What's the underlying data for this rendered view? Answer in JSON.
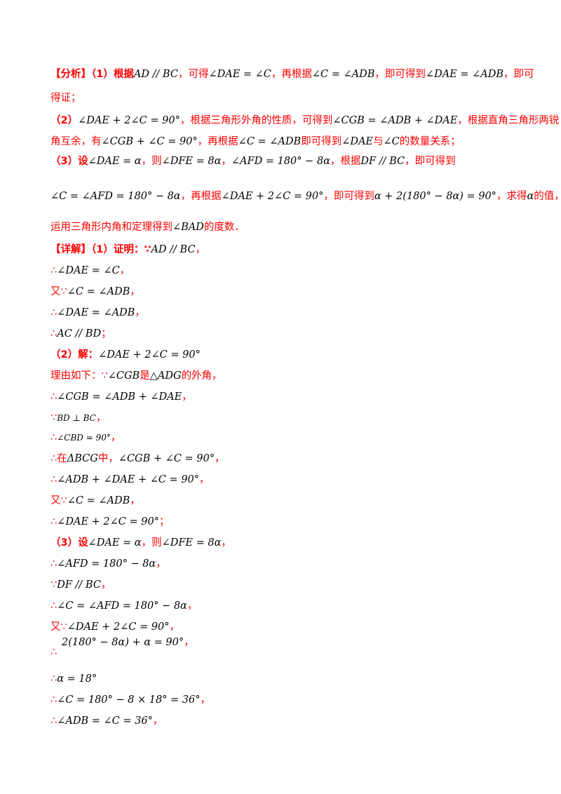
{
  "analysis": {
    "l1a": "【分析】（1）根据",
    "l1m1": "AD // BC",
    "l1b": "，可得",
    "l1m2": "∠DAE = ∠C",
    "l1c": "，再根据",
    "l1m3": "∠C = ∠ADB",
    "l1d": "，即可得到",
    "l1m4": "∠DAE = ∠ADB",
    "l1e": "，即可",
    "l2": "得证；",
    "l3a": "（2）",
    "l3m1": "∠DAE + 2∠C = 90°",
    "l3b": "，根据三角形外角的性质，可得到",
    "l3m2": "∠CGB = ∠ADB + ∠DAE",
    "l3c": "，根据直角三角形两锐",
    "l4a": "角互余，有",
    "l4m1": "∠CGB + ∠C = 90°",
    "l4b": "，再根据",
    "l4m2": "∠C = ∠ADB",
    "l4c": "即可得到",
    "l4m3": "∠DAE",
    "l4d": "与",
    "l4m4": "∠C",
    "l4e": "的数量关系；",
    "l5a": "（3）设",
    "l5m1": "∠DAE = α",
    "l5b": "，则",
    "l5m2": "∠DFE = 8α",
    "l5c": "，",
    "l5m3": "∠AFD = 180° − 8α",
    "l5d": "，根据",
    "l5m4": "DF // BC",
    "l5e": "，即可得到",
    "l6m1": "∠C = ∠AFD = 180° − 8α",
    "l6a": "，再根据",
    "l6m2": "∠DAE + 2∠C = 90°",
    "l6b": "，即可得到",
    "l6m3": "α + 2(180° − 8α) = 90°",
    "l6c": "，求得",
    "l6m4": "α",
    "l6d": "的值，即可",
    "l7a": "运用三角形内角和定理得到",
    "l7m1": "∠BAD",
    "l7b": "的度数．"
  },
  "detail": {
    "d1a": "【详解】（1）证明：∵",
    "d1m": "AD // BC",
    "d1b": "，",
    "d2a": "∴",
    "d2m": "∠DAE = ∠C",
    "d2b": "，",
    "d3a": "又∵",
    "d3m": "∠C = ∠ADB",
    "d3b": "，",
    "d4a": "∴",
    "d4m": "∠DAE = ∠ADB",
    "d4b": "，",
    "d5a": "∴",
    "d5m": "AC // BD",
    "d5b": "；",
    "d6a": "（2）解：",
    "d6m": "∠DAE + 2∠C = 90°",
    "d7a": "理由如下：∵",
    "d7m1": "∠CGB",
    "d7b": "是",
    "d7m2": "△ADG",
    "d7c": "的外角，",
    "d8a": "∴",
    "d8m": "∠CGB = ∠ADB + ∠DAE",
    "d8b": "，",
    "d9a": "∵",
    "d9m": "BD ⊥ BC",
    "d9b": "，",
    "d10a": "∴",
    "d10m": "∠CBD = 90°",
    "d10b": "，",
    "d11a": "∴在",
    "d11m1": "ΔBCG",
    "d11b": "中，",
    "d11m2": "∠CGB + ∠C = 90°",
    "d11c": "，",
    "d12a": "∴",
    "d12m": "∠ADB + ∠DAE + ∠C = 90°",
    "d12b": "，",
    "d13a": "又∵",
    "d13m": "∠C = ∠ADB",
    "d13b": "，",
    "d14a": "∴",
    "d14m": "∠DAE + 2∠C = 90°",
    "d14b": "；",
    "d15a": "（3）设",
    "d15m1": "∠DAE = α",
    "d15b": "，则",
    "d15m2": "∠DFE = 8α",
    "d15c": "，",
    "d16a": "∴",
    "d16m": "∠AFD = 180° − 8α",
    "d16b": "，",
    "d17a": "∵",
    "d17m": "DF // BC",
    "d17b": "，",
    "d18a": "∴",
    "d18m": "∠C = ∠AFD = 180° − 8α",
    "d18b": "，",
    "d19a": "又∵",
    "d19m": "∠DAE + 2∠C = 90°",
    "d19b": "，",
    "d20m": "2(180° − 8α) + α = 90°",
    "d20a": "∴",
    "d20b": "，",
    "d21a": "∴",
    "d21m": "α = 18°",
    "d22a": "∴",
    "d22m": "∠C = 180° − 8 × 18° = 36°",
    "d22b": "，",
    "d23a": "∴",
    "d23m": "∠ADB = ∠C = 36°",
    "d23b": "，"
  }
}
